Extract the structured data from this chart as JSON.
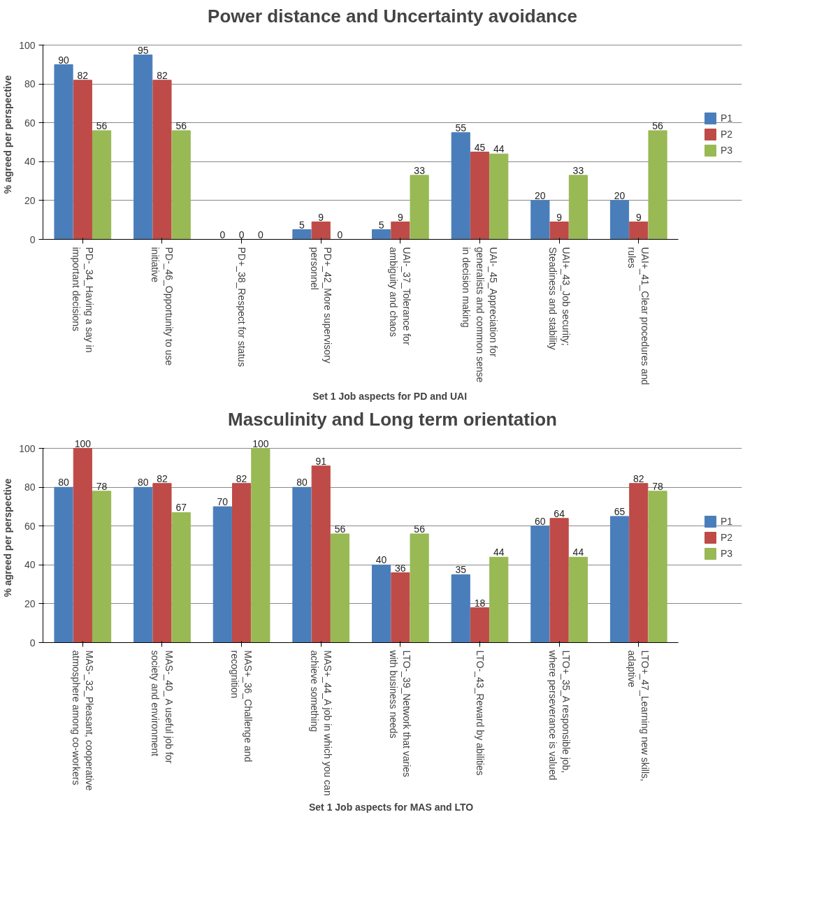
{
  "chart_data": [
    {
      "type": "bar",
      "title": "Power distance and Uncertainty avoidance",
      "xlabel": "Set 1  Job aspects for  PD and UAI",
      "ylabel": "% agreed per perspective",
      "categories": [
        "PD-_34_Having a say in important decisions",
        "PD-_46_Opportunity to use initiative",
        "PD+_38_Respect for status",
        "PD+_42_More supervisory personnel",
        "UAI-_37_Tolerance for ambiguity and chaos",
        "UAI-_45_Appreciation for generalists and common sense in decision making",
        "UAI+_43_Job security; Steadiness and stability",
        "UAI+_41_Clear procedures and rules"
      ],
      "series": [
        {
          "name": "P1",
          "color": "#4a7ebb",
          "values": [
            90,
            95,
            0,
            5,
            5,
            55,
            20,
            20
          ]
        },
        {
          "name": "P2",
          "color": "#be4b48",
          "values": [
            82,
            82,
            0,
            9,
            9,
            45,
            9,
            9
          ]
        },
        {
          "name": "P3",
          "color": "#98b954",
          "values": [
            56,
            56,
            0,
            0,
            33,
            44,
            33,
            56
          ]
        }
      ],
      "ylim": [
        0,
        100
      ],
      "yticks": [
        0,
        20,
        40,
        60,
        80,
        100
      ],
      "grid": "y",
      "legend": "right",
      "data_labels": true
    },
    {
      "type": "bar",
      "title": "Masculinity and Long term orientation",
      "xlabel": "Set 1  Job aspects for MAS and LTO",
      "ylabel": "% agreed per perspective",
      "categories": [
        "MAS-_32_Pleasant, cooperative atmosphere among co-workers",
        "MAS-_40_ A useful job for society and environment",
        "MAS+_36_Challenge and recognition",
        "MAS+_44_A job in which you can achieve something",
        "LTO-_39_Network that varies with business needs",
        "LTO-_43_Reward by abilities",
        "LTO+_35_A responsible job, where perseverance is valued",
        "LTO+_47_Learning new skills, adaptive"
      ],
      "series": [
        {
          "name": "P1",
          "color": "#4a7ebb",
          "values": [
            80,
            80,
            70,
            80,
            40,
            35,
            60,
            65
          ]
        },
        {
          "name": "P2",
          "color": "#be4b48",
          "values": [
            100,
            82,
            82,
            91,
            36,
            18,
            64,
            82
          ]
        },
        {
          "name": "P3",
          "color": "#98b954",
          "values": [
            78,
            67,
            100,
            56,
            56,
            44,
            44,
            78
          ]
        }
      ],
      "ylim": [
        0,
        100
      ],
      "yticks": [
        0,
        20,
        40,
        60,
        80,
        100
      ],
      "grid": "y",
      "legend": "right",
      "data_labels": true
    }
  ]
}
